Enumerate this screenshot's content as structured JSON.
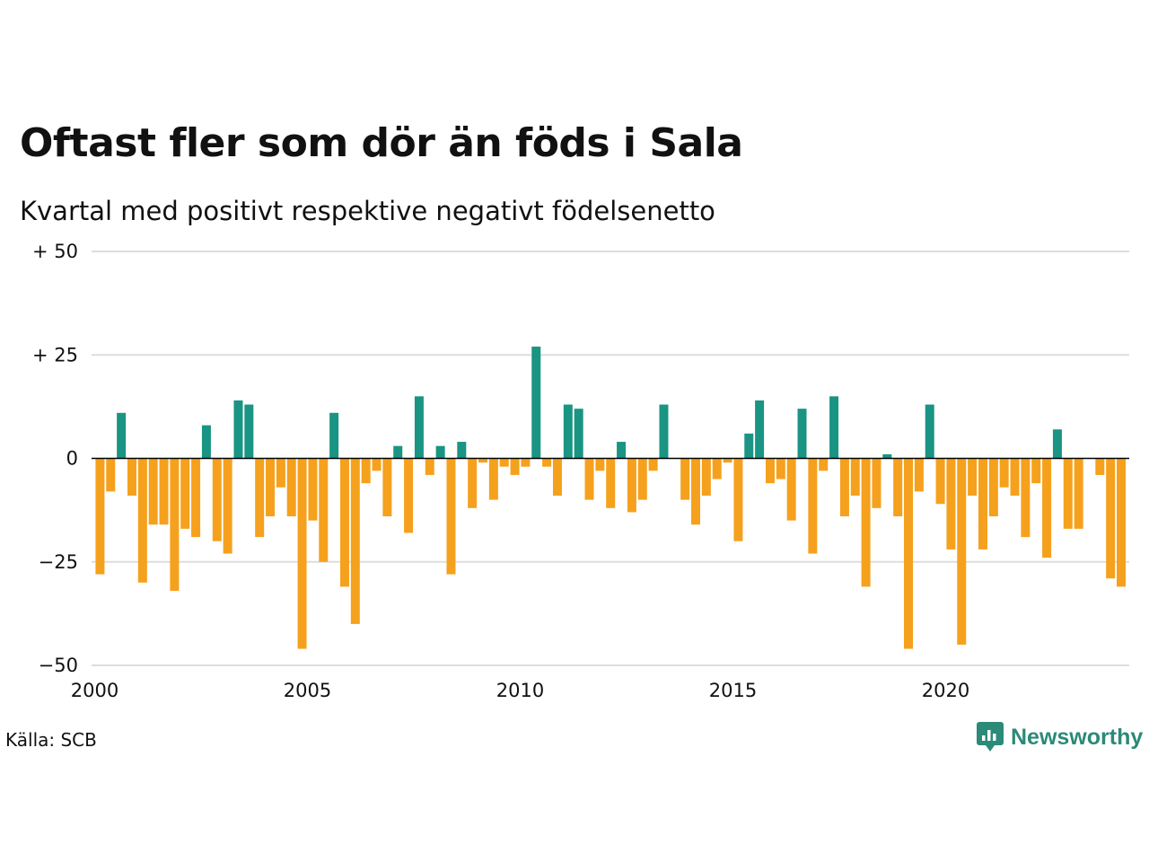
{
  "title": "Oftast fler som dör än föds i Sala",
  "subtitle": "Kvartal med positivt respektive negativt födelsenetto",
  "source": "Källa: SCB",
  "brand": "Newsworthy",
  "colors": {
    "positive": "#1a9483",
    "negative": "#f5a11d",
    "grid": "#dddddd",
    "brand": "#2b8a78"
  },
  "chart_data": {
    "type": "bar",
    "x_start": 2000,
    "x_step": 0.25,
    "ylim": [
      -50,
      50
    ],
    "y_ticks": [
      {
        "value": 50,
        "label": "+ 50"
      },
      {
        "value": 25,
        "label": "+ 25"
      },
      {
        "value": 0,
        "label": "0"
      },
      {
        "value": -25,
        "label": "−25"
      },
      {
        "value": -50,
        "label": "−50"
      }
    ],
    "x_ticks": [
      {
        "value": 2000,
        "label": "2000"
      },
      {
        "value": 2005,
        "label": "2005"
      },
      {
        "value": 2010,
        "label": "2010"
      },
      {
        "value": 2015,
        "label": "2015"
      },
      {
        "value": 2020,
        "label": "2020"
      }
    ],
    "values": [
      -28,
      -8,
      11,
      -9,
      -30,
      -16,
      -16,
      -32,
      -17,
      -19,
      8,
      -20,
      -23,
      14,
      13,
      -19,
      -14,
      -7,
      -14,
      -46,
      -15,
      -25,
      11,
      -31,
      -40,
      -6,
      -3,
      -14,
      3,
      -18,
      15,
      -4,
      3,
      -28,
      4,
      -12,
      -1,
      -10,
      -2,
      -4,
      -2,
      27,
      -2,
      -9,
      13,
      12,
      -10,
      -3,
      -12,
      4,
      -13,
      -10,
      -3,
      13,
      0,
      -10,
      -16,
      -9,
      -5,
      -1,
      -20,
      6,
      14,
      -6,
      -5,
      -15,
      12,
      -23,
      -3,
      15,
      -14,
      -9,
      -31,
      -12,
      1,
      -14,
      -46,
      -8,
      13,
      -11,
      -22,
      -45,
      -9,
      -22,
      -14,
      -7,
      -9,
      -19,
      -6,
      -24,
      7,
      -17,
      -17,
      0,
      -4,
      -29,
      -31
    ]
  }
}
